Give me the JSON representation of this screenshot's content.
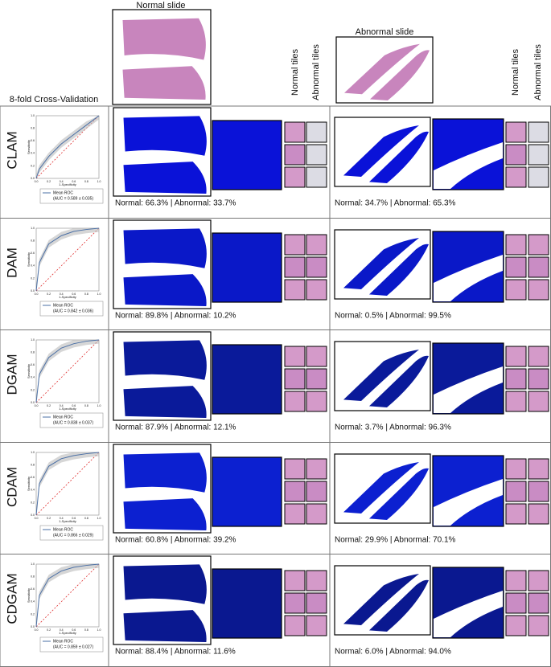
{
  "header": {
    "cv_label": "8-fold Cross-Validation",
    "normal_slide": "Normal slide",
    "abnormal_slide": "Abnormal slide",
    "normal_tiles": "Normal tiles",
    "abnormal_tiles": "Abnormal tiles"
  },
  "roc_axes": {
    "y_label": "Sensitivity",
    "x_label": "1-Specificity",
    "ticks": [
      "0.0",
      "0.2",
      "0.4",
      "0.6",
      "0.8",
      "1.0"
    ],
    "legend": "Mean ROC"
  },
  "rows": [
    {
      "model": "CLAM",
      "auc": "(AUC = 0.589 ± 0.035)",
      "normal_caption": "Normal: 66.3% | Abnormal: 33.7%",
      "abnormal_caption": "Normal: 34.7% | Abnormal: 65.3%",
      "roc_x": [
        0,
        0.05,
        0.2,
        0.4,
        0.6,
        0.8,
        1
      ],
      "roc_y": [
        0,
        0.15,
        0.35,
        0.55,
        0.7,
        0.85,
        1
      ]
    },
    {
      "model": "DAM",
      "auc": "(AUC = 0.842 ± 0.036)",
      "normal_caption": "Normal: 89.8% | Abnormal: 10.2%",
      "abnormal_caption": "Normal: 0.5% | Abnormal: 99.5%",
      "roc_x": [
        0,
        0.05,
        0.2,
        0.4,
        0.6,
        0.8,
        1
      ],
      "roc_y": [
        0,
        0.45,
        0.75,
        0.88,
        0.95,
        0.98,
        1
      ]
    },
    {
      "model": "DGAM",
      "auc": "(AUC = 0.838 ± 0.037)",
      "normal_caption": "Normal: 87.9% | Abnormal: 12.1%",
      "abnormal_caption": "Normal: 3.7% | Abnormal: 96.3%",
      "roc_x": [
        0,
        0.05,
        0.2,
        0.4,
        0.6,
        0.8,
        1
      ],
      "roc_y": [
        0,
        0.45,
        0.72,
        0.87,
        0.94,
        0.98,
        1
      ]
    },
    {
      "model": "CDAM",
      "auc": "(AUC = 0.866 ± 0.029)",
      "normal_caption": "Normal: 60.8% | Abnormal: 39.2%",
      "abnormal_caption": "Normal: 29.9% | Abnormal: 70.1%",
      "roc_x": [
        0,
        0.05,
        0.2,
        0.4,
        0.6,
        0.8,
        1
      ],
      "roc_y": [
        0,
        0.5,
        0.78,
        0.9,
        0.95,
        0.98,
        1
      ]
    },
    {
      "model": "CDGAM",
      "auc": "(AUC = 0.859 ± 0.027)",
      "normal_caption": "Normal: 88.4% | Abnormal: 11.6%",
      "abnormal_caption": "Normal: 6.0% | Abnormal: 94.0%",
      "roc_x": [
        0,
        0.05,
        0.2,
        0.4,
        0.6,
        0.8,
        1
      ],
      "roc_y": [
        0,
        0.5,
        0.77,
        0.89,
        0.95,
        0.98,
        1
      ]
    }
  ]
}
